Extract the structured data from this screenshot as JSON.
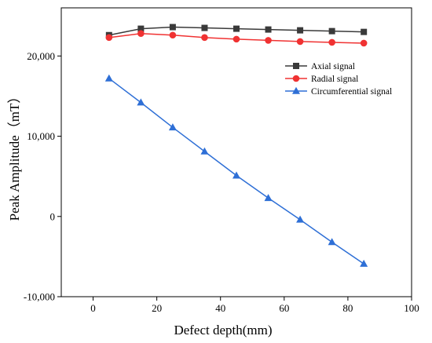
{
  "chart_data": {
    "type": "line",
    "title": "",
    "xlabel": "Defect depth(mm)",
    "ylabel": "Peak Amplitude（mT）",
    "xlim": [
      -10,
      100
    ],
    "ylim": [
      -10000,
      26000
    ],
    "xticks": [
      0,
      20,
      40,
      60,
      80,
      100
    ],
    "xtick_labels": [
      "0",
      "20",
      "40",
      "60",
      "80",
      "100"
    ],
    "yticks": [
      -10000,
      0,
      10000,
      20000
    ],
    "ytick_labels": [
      "-10,000",
      "0",
      "10,000",
      "20,000"
    ],
    "grid": false,
    "legend_position": "top-right",
    "x": [
      5,
      15,
      25,
      35,
      45,
      55,
      65,
      75,
      85
    ],
    "series": [
      {
        "name": "Axial signal",
        "color": "#3a3a3a",
        "marker": "square",
        "values": [
          22600,
          23400,
          23600,
          23500,
          23400,
          23300,
          23200,
          23100,
          23000
        ]
      },
      {
        "name": "Radial signal",
        "color": "#f03232",
        "marker": "circle",
        "values": [
          22300,
          22800,
          22600,
          22300,
          22100,
          21950,
          21800,
          21700,
          21600
        ]
      },
      {
        "name": "Circumferential signal",
        "color": "#2e6fd6",
        "marker": "triangle",
        "values": [
          17200,
          14200,
          11100,
          8100,
          5100,
          2300,
          -400,
          -3200,
          -5900
        ]
      }
    ]
  }
}
